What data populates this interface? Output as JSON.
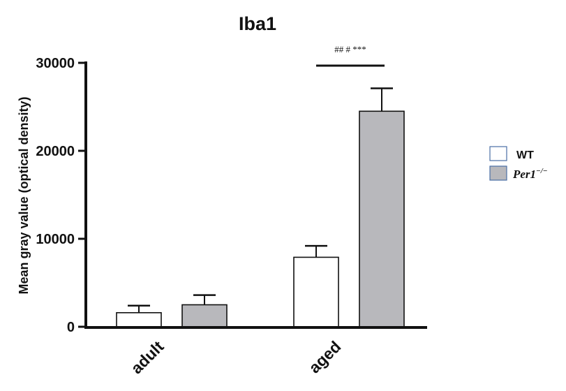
{
  "chart_data": {
    "type": "bar",
    "title": "Iba1",
    "xlabel": "",
    "ylabel": "Mean gray value (optical density)",
    "ylim": [
      0,
      30000
    ],
    "yticks": [
      0,
      10000,
      20000,
      30000
    ],
    "ytick_labels": [
      "0",
      "10000",
      "20000",
      "30000"
    ],
    "categories": [
      "adult",
      "aged"
    ],
    "series": [
      {
        "name": "WT",
        "color": "#ffffff",
        "values": [
          1600,
          7900
        ],
        "errors": [
          800,
          1300
        ]
      },
      {
        "name": "Per1",
        "name_superscript": "−/−",
        "color": "#b8b8bc",
        "values": [
          2500,
          24500
        ],
        "errors": [
          1100,
          2600
        ]
      }
    ],
    "annotations": [
      {
        "category": "aged",
        "text": "## # ***"
      }
    ],
    "legend": {
      "position": "right"
    },
    "grid": false
  }
}
